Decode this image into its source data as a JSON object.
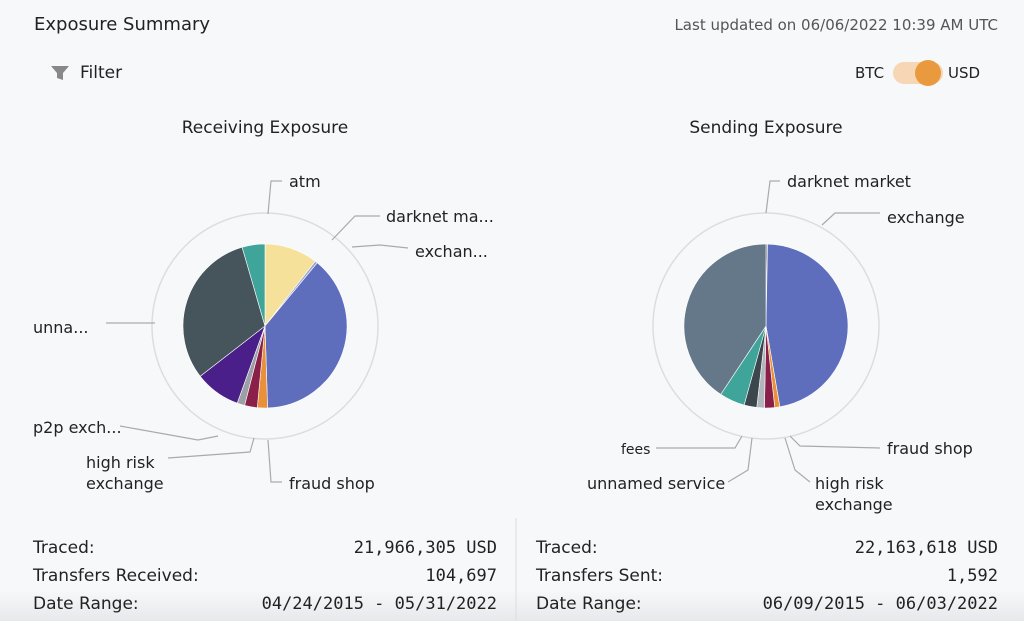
{
  "header": {
    "title": "Exposure Summary",
    "updated": "Last updated on 06/06/2022 10:39 AM UTC",
    "filter": "Filter",
    "toggle_left": "BTC",
    "toggle_right": "USD"
  },
  "chart_data": [
    {
      "type": "pie",
      "title": "Receiving Exposure",
      "categories": [
        "atm",
        "darknet ma...",
        "exchan...",
        "fraud shop",
        "high risk exchange",
        null,
        "p2p exch...",
        "unna...",
        null
      ],
      "values": [
        10.5,
        0.5,
        38.5,
        2,
        2.5,
        1.5,
        9,
        31,
        4.5
      ],
      "colors": [
        "#f5e19a",
        "#9aa3d6",
        "#5e6ebd",
        "#e8913a",
        "#8a1f4a",
        "#9aa0a6",
        "#4a1f8a",
        "#46545c",
        "#3fa59a"
      ]
    },
    {
      "type": "pie",
      "title": "Sending Exposure",
      "categories": [
        "darknet market",
        "exchange",
        "fraud shop",
        null,
        "high risk exchange",
        "unnamed service",
        "fees",
        null
      ],
      "values": [
        0.3,
        47,
        1,
        2,
        1.5,
        2.5,
        5,
        40.7
      ],
      "colors": [
        "#777777",
        "#5e6ebd",
        "#e8913a",
        "#8a1f4a",
        "#b0b6bb",
        "#3c464d",
        "#3fa59a",
        "#65788a"
      ]
    }
  ],
  "stats": [
    {
      "rows": [
        [
          "Traced:",
          "21,966,305 USD"
        ],
        [
          "Transfers Received:",
          "104,697"
        ],
        [
          "Date Range:",
          "04/24/2015 - 05/31/2022"
        ]
      ]
    },
    {
      "rows": [
        [
          "Traced:",
          "22,163,618 USD"
        ],
        [
          "Transfers Sent:",
          "1,592"
        ],
        [
          "Date Range:",
          "06/09/2015 - 06/03/2022"
        ]
      ]
    }
  ]
}
